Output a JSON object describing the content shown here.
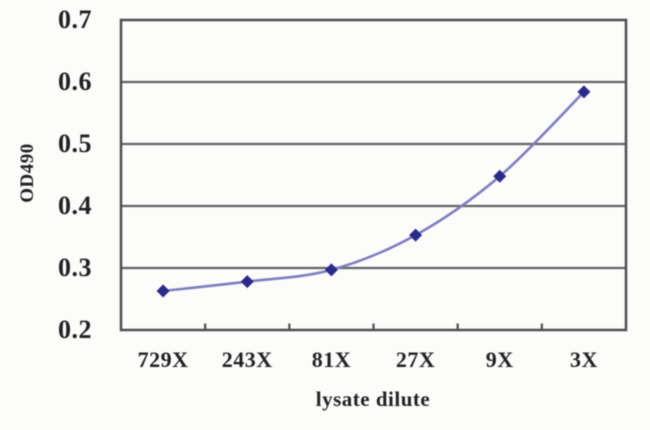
{
  "figure": {
    "background": "#fcfcfb"
  },
  "chart_data": {
    "type": "line",
    "title": "",
    "xlabel": "lysate dilute",
    "ylabel": "OD490",
    "categories": [
      "729X",
      "243X",
      "81X",
      "27X",
      "9X",
      "3X"
    ],
    "series": [
      {
        "name": "OD490",
        "values": [
          0.263,
          0.278,
          0.297,
          0.353,
          0.448,
          0.584
        ]
      }
    ],
    "ylim": [
      0.2,
      0.7
    ],
    "ytick_labels": [
      "0.2",
      "0.3",
      "0.4",
      "0.5",
      "0.6",
      "0.7"
    ],
    "grid": "horizontal",
    "legend": "none",
    "line_smoothed": true,
    "marker": "diamond",
    "colors": {
      "line": "#7e7ec0",
      "marker": "#2a2a8a",
      "gridline": "#636363",
      "border": "#4e4e4e",
      "text": "#222222"
    }
  }
}
